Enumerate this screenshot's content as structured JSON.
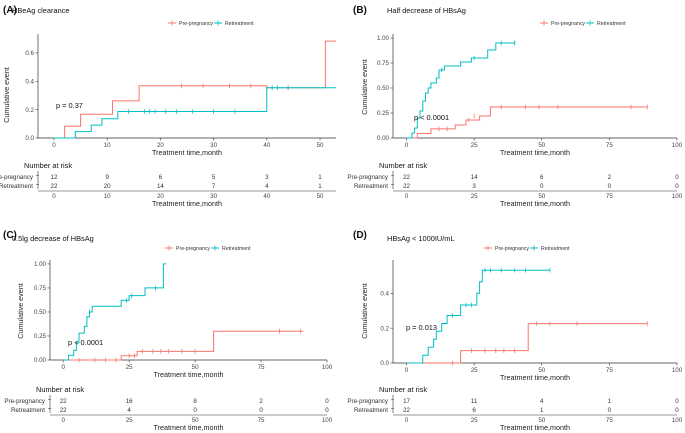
{
  "colors": {
    "pre": "#F8766D",
    "ret": "#00BFC4",
    "axis": "#333333"
  },
  "chart_data": [
    {
      "type": "line",
      "label": "(A)",
      "title": "HBeAg clearance",
      "xlabel": "Treatment time,month",
      "ylabel": "Cumulative event",
      "xlim": [
        -3,
        53
      ],
      "ylim": [
        0,
        0.72
      ],
      "xticks": [
        0,
        10,
        20,
        30,
        40,
        50
      ],
      "yticks": [
        0.0,
        0.2,
        0.4,
        0.6
      ],
      "ytick_labels": [
        "0.0",
        "0.2",
        "0.4",
        "0.6"
      ],
      "pvalue": "p = 0.37",
      "pval_at": [
        3,
        0.17
      ],
      "legend": [
        "Pre-pregnancy",
        "Retreatment"
      ],
      "series": [
        {
          "name": "Pre-pregnancy",
          "key": "pre",
          "steps": [
            [
              0,
              0
            ],
            [
              2,
              0.083
            ],
            [
              5,
              0.167
            ],
            [
              11,
              0.262
            ],
            [
              16,
              0.369
            ],
            [
              39,
              0.369
            ],
            [
              40,
              0.355
            ],
            [
              51,
              0.355
            ],
            [
              51,
              0.684
            ],
            [
              53,
              0.684
            ]
          ],
          "censor": [
            [
              24,
              0.369
            ],
            [
              28,
              0.369
            ],
            [
              33,
              0.369
            ],
            [
              37,
              0.369
            ],
            [
              40,
              0.355
            ]
          ]
        },
        {
          "name": "Retreatment",
          "key": "ret",
          "steps": [
            [
              0,
              0
            ],
            [
              4,
              0.045
            ],
            [
              7,
              0.091
            ],
            [
              9,
              0.136
            ],
            [
              11,
              0.136
            ],
            [
              12,
              0.187
            ],
            [
              22,
              0.187
            ],
            [
              40,
              0.187
            ],
            [
              40,
              0.355
            ],
            [
              53,
              0.355
            ]
          ],
          "censor": [
            [
              14,
              0.187
            ],
            [
              17,
              0.187
            ],
            [
              18,
              0.187
            ],
            [
              19,
              0.187
            ],
            [
              21,
              0.187
            ],
            [
              23,
              0.187
            ],
            [
              26,
              0.187
            ],
            [
              30,
              0.187
            ],
            [
              34,
              0.187
            ],
            [
              41,
              0.355
            ],
            [
              42,
              0.355
            ],
            [
              44,
              0.355
            ]
          ]
        }
      ],
      "risk_title": "Number at risk",
      "risk_rows": [
        {
          "name": "Pre-pregnancy",
          "key": "pre",
          "values": [
            "12",
            "9",
            "6",
            "5",
            "3",
            "1"
          ]
        },
        {
          "name": "Retreatment",
          "key": "ret",
          "values": [
            "22",
            "20",
            "14",
            "7",
            "4",
            "1"
          ]
        }
      ]
    },
    {
      "type": "line",
      "label": "(B)",
      "title": "Half decrease of HBsAg",
      "xlabel": "Treatment time,month",
      "ylabel": "Cumulative event",
      "xlim": [
        -5,
        100
      ],
      "ylim": [
        0,
        1.02
      ],
      "xticks": [
        0,
        25,
        50,
        75,
        100
      ],
      "yticks": [
        0,
        0.25,
        0.5,
        0.75,
        1.0
      ],
      "ytick_labels": [
        "0.00",
        "0.25",
        "0.50",
        "0.75",
        "1.00"
      ],
      "pvalue": "p < 0.0001",
      "pval_at": [
        3,
        0.19
      ],
      "legend": [
        "Pre-pregnancy",
        "Retreatment"
      ],
      "series": [
        {
          "name": "Pre-pregnancy",
          "key": "pre",
          "steps": [
            [
              0,
              0
            ],
            [
              4,
              0
            ],
            [
              4,
              0.045
            ],
            [
              9,
              0.091
            ],
            [
              18,
              0.13
            ],
            [
              22,
              0.18
            ],
            [
              27,
              0.22
            ],
            [
              31,
              0.31
            ],
            [
              48,
              0.31
            ],
            [
              89,
              0.31
            ]
          ],
          "censor": [
            [
              12,
              0.091
            ],
            [
              15,
              0.091
            ],
            [
              23,
              0.18
            ],
            [
              25,
              0.22
            ],
            [
              35,
              0.31
            ],
            [
              44,
              0.31
            ],
            [
              49,
              0.31
            ],
            [
              56,
              0.31
            ],
            [
              83,
              0.31
            ],
            [
              89,
              0.31
            ]
          ]
        },
        {
          "name": "Retreatment",
          "key": "ret",
          "steps": [
            [
              0,
              0
            ],
            [
              2,
              0.05
            ],
            [
              3,
              0.1
            ],
            [
              4,
              0.2
            ],
            [
              5,
              0.27
            ],
            [
              6,
              0.37
            ],
            [
              7,
              0.45
            ],
            [
              8,
              0.5
            ],
            [
              9,
              0.55
            ],
            [
              11,
              0.6
            ],
            [
              12,
              0.68
            ],
            [
              14,
              0.72
            ],
            [
              19,
              0.72
            ],
            [
              20,
              0.76
            ],
            [
              24,
              0.8
            ],
            [
              30,
              0.88
            ],
            [
              33,
              0.95
            ],
            [
              40,
              0.95
            ],
            [
              40,
              0.97
            ]
          ],
          "censor": [
            [
              13,
              0.68
            ],
            [
              25,
              0.8
            ],
            [
              35,
              0.95
            ],
            [
              40,
              0.95
            ]
          ]
        }
      ],
      "risk_title": "Number at risk",
      "risk_rows": [
        {
          "name": "Pre-pregnancy",
          "key": "pre",
          "values": [
            "22",
            "14",
            "6",
            "2",
            "0"
          ]
        },
        {
          "name": "Retreatment",
          "key": "ret",
          "values": [
            "22",
            "3",
            "0",
            "0",
            "0"
          ]
        }
      ]
    },
    {
      "type": "line",
      "label": "(C)",
      "title": "0.5lg decrease of HBsAg",
      "xlabel": "Treatment time,month",
      "ylabel": "Cumulative event",
      "xlim": [
        -5,
        100
      ],
      "ylim": [
        0,
        1.02
      ],
      "xticks": [
        0,
        25,
        50,
        75,
        100
      ],
      "yticks": [
        0,
        0.25,
        0.5,
        0.75,
        1.0
      ],
      "ytick_labels": [
        "0.00",
        "0.25",
        "0.50",
        "0.75",
        "1.00"
      ],
      "pvalue": "p < 0.0001",
      "pval_at": [
        3,
        0.19
      ],
      "legend": [
        "Pre-pregnancy",
        "Retreatment"
      ],
      "series": [
        {
          "name": "Pre-pregnancy",
          "key": "pre",
          "steps": [
            [
              0,
              0
            ],
            [
              22,
              0
            ],
            [
              22,
              0.045
            ],
            [
              28,
              0.09
            ],
            [
              56,
              0.09
            ],
            [
              57,
              0.3
            ],
            [
              91,
              0.3
            ]
          ],
          "censor": [
            [
              6,
              0
            ],
            [
              12,
              0
            ],
            [
              16,
              0
            ],
            [
              20,
              0
            ],
            [
              25,
              0.045
            ],
            [
              27,
              0.045
            ],
            [
              30,
              0.09
            ],
            [
              34,
              0.09
            ],
            [
              37,
              0.09
            ],
            [
              40,
              0.09
            ],
            [
              45,
              0.09
            ],
            [
              50,
              0.09
            ],
            [
              82,
              0.3
            ],
            [
              90,
              0.3
            ]
          ]
        },
        {
          "name": "Retreatment",
          "key": "ret",
          "steps": [
            [
              0,
              0
            ],
            [
              2,
              0.05
            ],
            [
              4,
              0.1
            ],
            [
              5,
              0.18
            ],
            [
              6,
              0.28
            ],
            [
              8,
              0.35
            ],
            [
              9,
              0.45
            ],
            [
              10,
              0.5
            ],
            [
              11,
              0.56
            ],
            [
              22,
              0.56
            ],
            [
              22,
              0.62
            ],
            [
              25,
              0.67
            ],
            [
              31,
              0.75
            ],
            [
              38,
              0.75
            ],
            [
              38,
              1.0
            ],
            [
              39,
              1.0
            ]
          ],
          "censor": [
            [
              10,
              0.5
            ],
            [
              24,
              0.62
            ],
            [
              26,
              0.67
            ],
            [
              35,
              0.75
            ]
          ]
        }
      ],
      "risk_title": "Number at risk",
      "risk_rows": [
        {
          "name": "Pre-pregnancy",
          "key": "pre",
          "values": [
            "22",
            "16",
            "8",
            "2",
            "0"
          ]
        },
        {
          "name": "Retreatment",
          "key": "ret",
          "values": [
            "22",
            "4",
            "0",
            "0",
            "0"
          ]
        }
      ]
    },
    {
      "type": "line",
      "label": "(D)",
      "title": "HBsAg < 1000IU/mL",
      "xlabel": "Treatment time,month",
      "ylabel": "Cumulative event",
      "xlim": [
        -5,
        100
      ],
      "ylim": [
        0,
        0.58
      ],
      "xticks": [
        0,
        25,
        50,
        75,
        100
      ],
      "yticks": [
        0.0,
        0.2,
        0.4
      ],
      "ytick_labels": [
        "0.0",
        "0.2",
        "0.4"
      ],
      "pvalue": "p = 0.013",
      "pval_at": [
        3,
        0.14
      ],
      "legend": [
        "Pre-pregnancy",
        "Retreatment"
      ],
      "series": [
        {
          "name": "Pre-pregnancy",
          "key": "pre",
          "steps": [
            [
              0,
              0
            ],
            [
              20,
              0
            ],
            [
              20,
              0.071
            ],
            [
              45,
              0.071
            ],
            [
              45,
              0.226
            ],
            [
              89,
              0.226
            ]
          ],
          "censor": [
            [
              17,
              0
            ],
            [
              24,
              0.071
            ],
            [
              29,
              0.071
            ],
            [
              33,
              0.071
            ],
            [
              36,
              0.071
            ],
            [
              40,
              0.071
            ],
            [
              48,
              0.226
            ],
            [
              53,
              0.226
            ],
            [
              63,
              0.226
            ],
            [
              89,
              0.226
            ]
          ]
        },
        {
          "name": "Retreatment",
          "key": "ret",
          "steps": [
            [
              0,
              0
            ],
            [
              6,
              0
            ],
            [
              6,
              0.045
            ],
            [
              8,
              0.091
            ],
            [
              10,
              0.136
            ],
            [
              11,
              0.182
            ],
            [
              13,
              0.227
            ],
            [
              15,
              0.273
            ],
            [
              19,
              0.273
            ],
            [
              20,
              0.333
            ],
            [
              26,
              0.4
            ],
            [
              27,
              0.467
            ],
            [
              28,
              0.533
            ],
            [
              53,
              0.533
            ]
          ],
          "censor": [
            [
              17,
              0.273
            ],
            [
              22,
              0.333
            ],
            [
              24,
              0.333
            ],
            [
              29,
              0.533
            ],
            [
              31,
              0.533
            ],
            [
              35,
              0.533
            ],
            [
              40,
              0.533
            ],
            [
              44,
              0.533
            ],
            [
              53,
              0.533
            ]
          ]
        }
      ],
      "risk_title": "Number at risk",
      "risk_rows": [
        {
          "name": "Pre-pregnancy",
          "key": "pre",
          "values": [
            "17",
            "11",
            "4",
            "1",
            "0"
          ]
        },
        {
          "name": "Retreatment",
          "key": "ret",
          "values": [
            "22",
            "6",
            "1",
            "0",
            "0"
          ]
        }
      ]
    }
  ]
}
